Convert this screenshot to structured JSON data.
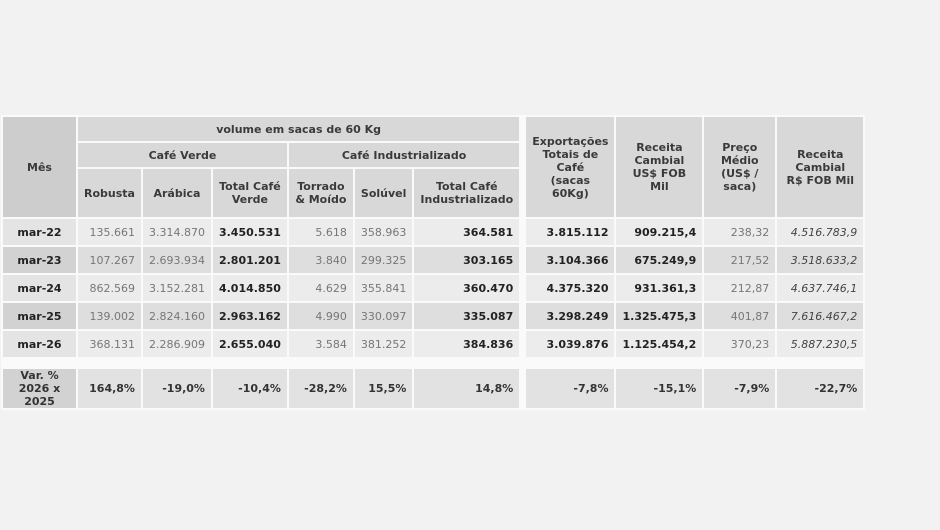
{
  "headers": {
    "mes": "Mês",
    "volume": "volume em sacas de 60 Kg",
    "cafe_verde": "Café Verde",
    "cafe_industrializado": "Café Industrializado",
    "robusta": "Robusta",
    "arabica": "Arábica",
    "total_verde": [
      "Total Café",
      "Verde"
    ],
    "torrado": [
      "Torrado",
      "& Moído"
    ],
    "soluvel": "Solúvel",
    "total_ind": [
      "Total Café",
      "Industrializado"
    ],
    "exportacoes": [
      "Exportações",
      "Totais de Café",
      "(sacas 60Kg)"
    ],
    "receita_usd": [
      "Receita",
      "Cambial",
      "US$ FOB Mil"
    ],
    "preco": [
      "Preço",
      "Médio",
      "(US$ / saca)"
    ],
    "receita_brl": [
      "Receita",
      "Cambial",
      "R$ FOB Mil"
    ]
  },
  "rows": [
    {
      "mes": "mar-22",
      "robusta": "135.661",
      "arabica": "3.314.870",
      "total_verde": "3.450.531",
      "torrado": "5.618",
      "soluvel": "358.963",
      "total_ind": "364.581",
      "exportacoes": "3.815.112",
      "receita_usd": "909.215,4",
      "preco": "238,32",
      "receita_brl": "4.516.783,9"
    },
    {
      "mes": "mar-23",
      "robusta": "107.267",
      "arabica": "2.693.934",
      "total_verde": "2.801.201",
      "torrado": "3.840",
      "soluvel": "299.325",
      "total_ind": "303.165",
      "exportacoes": "3.104.366",
      "receita_usd": "675.249,9",
      "preco": "217,52",
      "receita_brl": "3.518.633,2"
    },
    {
      "mes": "mar-24",
      "robusta": "862.569",
      "arabica": "3.152.281",
      "total_verde": "4.014.850",
      "torrado": "4.629",
      "soluvel": "355.841",
      "total_ind": "360.470",
      "exportacoes": "4.375.320",
      "receita_usd": "931.361,3",
      "preco": "212,87",
      "receita_brl": "4.637.746,1"
    },
    {
      "mes": "mar-25",
      "robusta": "139.002",
      "arabica": "2.824.160",
      "total_verde": "2.963.162",
      "torrado": "4.990",
      "soluvel": "330.097",
      "total_ind": "335.087",
      "exportacoes": "3.298.249",
      "receita_usd": "1.325.475,3",
      "preco": "401,87",
      "receita_brl": "7.616.467,2"
    },
    {
      "mes": "mar-26",
      "robusta": "368.131",
      "arabica": "2.286.909",
      "total_verde": "2.655.040",
      "torrado": "3.584",
      "soluvel": "381.252",
      "total_ind": "384.836",
      "exportacoes": "3.039.876",
      "receita_usd": "1.125.454,2",
      "preco": "370,23",
      "receita_brl": "5.887.230,5"
    }
  ],
  "variation": {
    "label": [
      "Var. %",
      "2026 x 2025"
    ],
    "robusta": "164,8%",
    "arabica": "-19,0%",
    "total_verde": "-10,4%",
    "torrado": "-28,2%",
    "soluvel": "15,5%",
    "total_ind": "14,8%",
    "exportacoes": "-7,8%",
    "receita_usd": "-15,1%",
    "preco": "-7,9%",
    "receita_brl": "-22,7%"
  }
}
